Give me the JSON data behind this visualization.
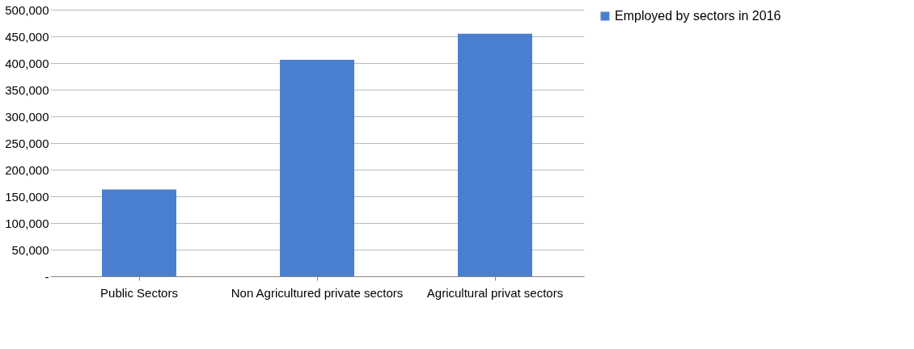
{
  "chart_data": {
    "type": "bar",
    "categories": [
      "Public Sectors",
      "Non Agricultured private sectors",
      "Agricultural privat sectors"
    ],
    "series": [
      {
        "name": "Employed by sectors in 2016",
        "color": "#4a7fd0",
        "values": [
          163000,
          406000,
          455000
        ]
      }
    ],
    "ylim": [
      0,
      500000
    ],
    "yticks": [
      {
        "value": 0,
        "label": "-"
      },
      {
        "value": 50000,
        "label": "50,000"
      },
      {
        "value": 100000,
        "label": "100,000"
      },
      {
        "value": 150000,
        "label": "150,000"
      },
      {
        "value": 200000,
        "label": "200,000"
      },
      {
        "value": 250000,
        "label": "250,000"
      },
      {
        "value": 300000,
        "label": "300,000"
      },
      {
        "value": 350000,
        "label": "350,000"
      },
      {
        "value": 400000,
        "label": "400,000"
      },
      {
        "value": 450000,
        "label": "450,000"
      },
      {
        "value": 500000,
        "label": "500,000"
      }
    ],
    "grid": "y",
    "legend": "right"
  }
}
